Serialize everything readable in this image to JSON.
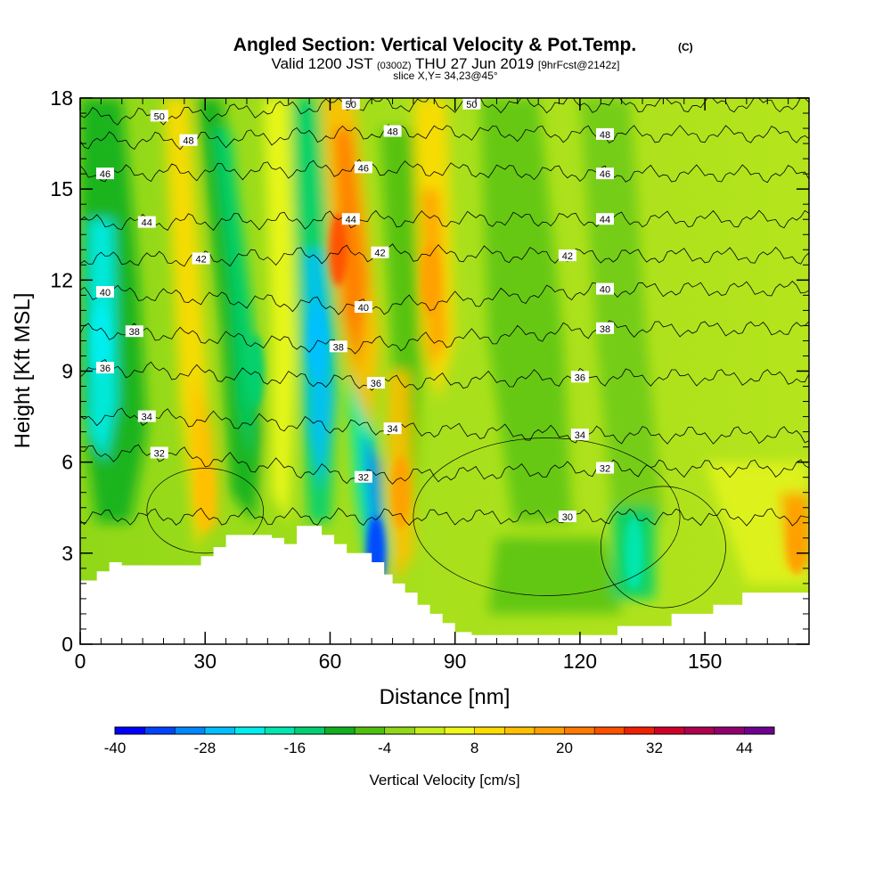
{
  "title": {
    "main": "Angled Section: Vertical Velocity & Pot.Temp.",
    "main_unit": "(C)",
    "valid_prefix": "Valid 1200 JST",
    "valid_utc": "(0300Z)",
    "valid_date": "THU 27 Jun 2019",
    "forecast": "[9hrFcst@2142z]",
    "slice": "slice X,Y= 34,23@45°"
  },
  "chart_data": {
    "type": "heatmap",
    "xlabel": "Distance [nm]",
    "ylabel": "Height [Kft MSL]",
    "xlim": [
      0,
      175
    ],
    "ylim": [
      0,
      18
    ],
    "x_ticks": [
      0,
      30,
      60,
      90,
      120,
      150
    ],
    "y_ticks": [
      0,
      3,
      6,
      9,
      12,
      15,
      18
    ],
    "grid": false,
    "colorbar": {
      "label": "Vertical Velocity [cm/s]",
      "min": -40,
      "max": 48,
      "step": 4,
      "tick_values": [
        -40,
        -28,
        -16,
        -4,
        8,
        20,
        32,
        44
      ],
      "colors": [
        "#0000ff",
        "#0044ff",
        "#0088ff",
        "#00c0ff",
        "#00eeee",
        "#00e8b0",
        "#00d070",
        "#10b020",
        "#50c010",
        "#90d818",
        "#c8ee1c",
        "#f0f818",
        "#ffdc00",
        "#ffc000",
        "#ffa000",
        "#ff7a00",
        "#ff5000",
        "#f02000",
        "#d00028",
        "#b00050",
        "#900070",
        "#700090"
      ]
    },
    "vertical_velocity_features": [
      {
        "x": 5,
        "y": 10,
        "value": -24
      },
      {
        "x": 42,
        "y": 9,
        "value": -16
      },
      {
        "x": 57,
        "y": 10,
        "value": -28
      },
      {
        "x": 71,
        "y": 3,
        "value": -36
      },
      {
        "x": 62,
        "y": 13,
        "value": 24
      },
      {
        "x": 84,
        "y": 12,
        "value": 16
      },
      {
        "x": 77,
        "y": 5,
        "value": 16
      },
      {
        "x": 30,
        "y": 5,
        "value": 12
      },
      {
        "x": 133,
        "y": 3,
        "value": -20
      },
      {
        "x": 172,
        "y": 3.5,
        "value": 16
      }
    ],
    "pot_temp_contours": [
      {
        "value": 50,
        "label_points": [
          [
            19,
            17.4
          ],
          [
            65,
            17.8
          ],
          [
            94,
            17.8
          ]
        ]
      },
      {
        "value": 48,
        "label_points": [
          [
            26,
            16.6
          ],
          [
            75,
            16.9
          ],
          [
            126,
            16.8
          ]
        ]
      },
      {
        "value": 46,
        "label_points": [
          [
            6,
            15.5
          ],
          [
            68,
            15.7
          ],
          [
            126,
            15.5
          ]
        ]
      },
      {
        "value": 44,
        "label_points": [
          [
            16,
            13.9
          ],
          [
            65,
            14.0
          ],
          [
            126,
            14.0
          ]
        ]
      },
      {
        "value": 42,
        "label_points": [
          [
            29,
            12.7
          ],
          [
            72,
            12.9
          ],
          [
            117,
            12.8
          ]
        ]
      },
      {
        "value": 40,
        "label_points": [
          [
            6,
            11.6
          ],
          [
            68,
            11.1
          ],
          [
            126,
            11.7
          ]
        ]
      },
      {
        "value": 38,
        "label_points": [
          [
            13,
            10.3
          ],
          [
            62,
            9.8
          ],
          [
            126,
            10.4
          ]
        ]
      },
      {
        "value": 36,
        "label_points": [
          [
            6,
            9.1
          ],
          [
            71,
            8.6
          ],
          [
            120,
            8.8
          ]
        ]
      },
      {
        "value": 34,
        "label_points": [
          [
            16,
            7.5
          ],
          [
            75,
            7.1
          ],
          [
            120,
            6.9
          ]
        ]
      },
      {
        "value": 32,
        "label_points": [
          [
            19,
            6.3
          ],
          [
            68,
            5.5
          ],
          [
            126,
            5.8
          ]
        ]
      },
      {
        "value": 30,
        "label_points": [
          [
            117,
            4.2
          ]
        ]
      }
    ],
    "terrain_profile_kft": [
      [
        0,
        2.1
      ],
      [
        4,
        2.1
      ],
      [
        4,
        2.4
      ],
      [
        7,
        2.4
      ],
      [
        7,
        2.7
      ],
      [
        10,
        2.7
      ],
      [
        10,
        2.6
      ],
      [
        29,
        2.6
      ],
      [
        29,
        2.9
      ],
      [
        32,
        2.9
      ],
      [
        32,
        3.2
      ],
      [
        35,
        3.2
      ],
      [
        35,
        3.6
      ],
      [
        46,
        3.6
      ],
      [
        46,
        3.5
      ],
      [
        49,
        3.5
      ],
      [
        49,
        3.3
      ],
      [
        52,
        3.3
      ],
      [
        52,
        3.9
      ],
      [
        58,
        3.9
      ],
      [
        58,
        3.6
      ],
      [
        61,
        3.6
      ],
      [
        61,
        3.3
      ],
      [
        64,
        3.3
      ],
      [
        64,
        3.0
      ],
      [
        70,
        3.0
      ],
      [
        70,
        2.7
      ],
      [
        73,
        2.7
      ],
      [
        73,
        2.3
      ],
      [
        75,
        2.3
      ],
      [
        75,
        2.0
      ],
      [
        78,
        2.0
      ],
      [
        78,
        1.7
      ],
      [
        81,
        1.7
      ],
      [
        81,
        1.3
      ],
      [
        84,
        1.3
      ],
      [
        84,
        1.0
      ],
      [
        87,
        1.0
      ],
      [
        87,
        0.7
      ],
      [
        90,
        0.7
      ],
      [
        90,
        0.4
      ],
      [
        94,
        0.4
      ],
      [
        94,
        0.3
      ],
      [
        129,
        0.3
      ],
      [
        129,
        0.6
      ],
      [
        142,
        0.6
      ],
      [
        142,
        1.0
      ],
      [
        152,
        1.0
      ],
      [
        152,
        1.3
      ],
      [
        159,
        1.3
      ],
      [
        159,
        1.7
      ],
      [
        175,
        1.7
      ]
    ]
  }
}
